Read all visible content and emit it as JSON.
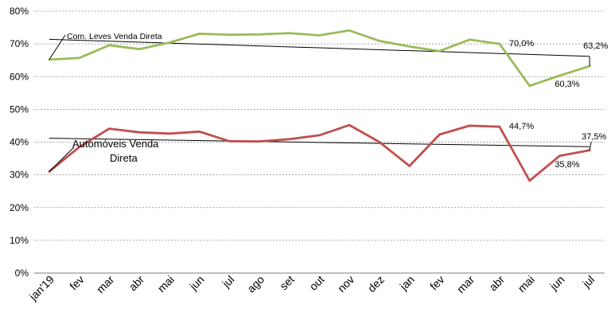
{
  "chart_data": {
    "type": "line",
    "categories": [
      "jan'19",
      "fev",
      "mar",
      "abr",
      "mai",
      "jun",
      "jul",
      "ago",
      "set",
      "out",
      "nov",
      "dez",
      "jan",
      "fev",
      "mar",
      "abr",
      "mai",
      "jun",
      "jul"
    ],
    "ylim": [
      0,
      80
    ],
    "y_ticks": [
      "0%",
      "10%",
      "20%",
      "30%",
      "40%",
      "50%",
      "60%",
      "70%",
      "80%"
    ],
    "grid": true,
    "series": [
      {
        "name": "Com. Leves Venda Direta",
        "color": "#9bbb59",
        "values": [
          65.2,
          65.7,
          69.6,
          68.4,
          70.4,
          73.1,
          72.8,
          72.9,
          73.3,
          72.6,
          74.1,
          70.9,
          69.2,
          67.8,
          71.3,
          70.0,
          57.2,
          60.3,
          63.2
        ],
        "labels": [
          {
            "index": 15,
            "text": "70,0%"
          },
          {
            "index": 17,
            "text": "60,3%"
          },
          {
            "index": 18,
            "text": "63,2%"
          }
        ]
      },
      {
        "name": "Automóveis Venda Direta",
        "color": "#c0504d",
        "values": [
          31.0,
          38.5,
          44.1,
          43.0,
          42.6,
          43.2,
          40.3,
          40.2,
          40.9,
          42.1,
          45.2,
          40.0,
          32.7,
          42.3,
          45.0,
          44.7,
          28.2,
          35.8,
          37.5
        ],
        "labels": [
          {
            "index": 15,
            "text": "44,7%"
          },
          {
            "index": 17,
            "text": "35,8%"
          },
          {
            "index": 18,
            "text": "37,5%"
          }
        ]
      }
    ],
    "trendlines": [
      {
        "series": 0,
        "color": "#000000",
        "start": 71.4,
        "end": 66.2
      },
      {
        "series": 1,
        "color": "#000000",
        "start": 41.2,
        "end": 38.6
      }
    ]
  }
}
